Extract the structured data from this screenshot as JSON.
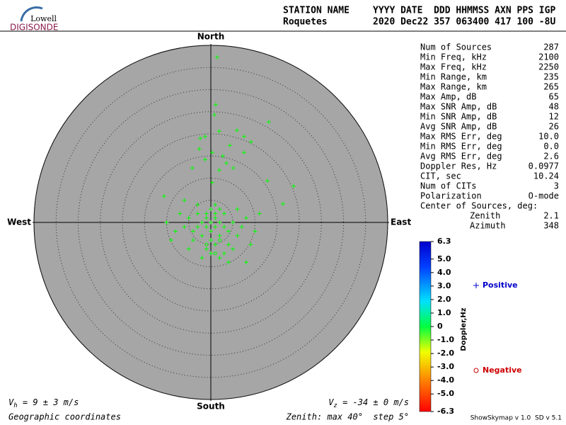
{
  "header": {
    "logo_top": "Lowell",
    "logo_bottom": "DIGISONDE",
    "row1_left": "STATION NAME",
    "row1_right": "YYYY DATE  DDD HHMMSS AXN PPS IGP",
    "row2_left": "Roquetes",
    "row2_right": "2020 Dec22 357 063400 417 100 -8U"
  },
  "stats": [
    [
      "Num of Sources",
      "287"
    ],
    [
      "Min Freq, kHz",
      "2100"
    ],
    [
      "Max Freq, kHz",
      "2250"
    ],
    [
      "Min Range, km",
      "235"
    ],
    [
      "Max Range, km",
      "265"
    ],
    [
      "Max Amp, dB",
      "65"
    ],
    [
      "Max SNR Amp, dB",
      "48"
    ],
    [
      "Min SNR Amp, dB",
      "12"
    ],
    [
      "Avg SNR Amp, dB",
      "26"
    ],
    [
      "Max RMS Err, deg",
      "10.0"
    ],
    [
      "Min RMS Err, deg",
      "0.0"
    ],
    [
      "Avg RMS Err, deg",
      "2.6"
    ],
    [
      "Doppler Res, Hz",
      "0.0977"
    ],
    [
      "CIT, sec",
      "10.24"
    ],
    [
      "Num of CITs",
      "3"
    ],
    [
      "Polarization",
      "O-mode"
    ],
    [
      "Center of Sources, deg:",
      ""
    ]
  ],
  "center": [
    [
      "Zenith",
      "2.1"
    ],
    [
      "Azimuth",
      "348"
    ]
  ],
  "footer": {
    "vh_v": "V",
    "vh_sub": "h",
    "vh_text": " = 9 ± 3 m/s",
    "vz_v": "V",
    "vz_sub": "z",
    "vz_text": " = -34 ± 0 m/s",
    "coords": "Geographic coordinates",
    "zenith": "Zenith: max 40°  step 5°",
    "version": "ShowSkymap v 1.0  SD v 5.1"
  },
  "chart_data": {
    "type": "scatter",
    "directions": {
      "north": "North",
      "south": "South",
      "west": "West",
      "east": "East"
    },
    "xlim": [
      -40,
      40
    ],
    "ylim": [
      -40,
      40
    ],
    "rticks": [
      5,
      10,
      15,
      20,
      25,
      30,
      35,
      40
    ],
    "series": [
      {
        "name": "Positive",
        "marker": "+",
        "color": "#00ff00",
        "legend_color": "#0000cc",
        "x": [
          1.4,
          1.1,
          0.8,
          13.1,
          5.9,
          1.9,
          -1.3,
          -2.4,
          7.5,
          4.3,
          9.1,
          -2.6,
          0.3,
          7.5,
          2.7,
          -1.3,
          3.5,
          5.1,
          1.9,
          -4.2,
          0.3,
          12.8,
          18.7,
          -10.6,
          16.3,
          0,
          1,
          -1,
          2,
          -2,
          0,
          3,
          -3,
          1,
          -1,
          4,
          -4,
          2,
          -2,
          0,
          5,
          -5,
          3,
          -3,
          6,
          -6,
          1,
          -1,
          4,
          -4,
          7,
          -8,
          8,
          -7,
          2,
          0,
          6,
          -9,
          9,
          3,
          -2,
          5,
          -5,
          1,
          -3,
          8,
          4,
          -10,
          10,
          11,
          -6,
          0,
          2,
          -1,
          1
        ],
        "values": [
          37.3,
          26.6,
          24.3,
          22.7,
          20.8,
          20.6,
          19.4,
          19.0,
          19.4,
          17.4,
          18.2,
          16.6,
          15.8,
          15.8,
          15.0,
          14.2,
          13.4,
          12.3,
          11.8,
          12.3,
          9.0,
          9.4,
          8.2,
          5.9,
          4.2,
          0,
          -1,
          -1,
          0,
          0,
          -2,
          -1,
          -1,
          1,
          1,
          -2,
          -2,
          -3,
          -3,
          -4,
          0,
          1,
          2,
          2,
          -3,
          -1,
          -5,
          -6,
          -5,
          -4,
          -1,
          -2,
          1,
          2,
          3,
          3,
          3,
          -4,
          -5,
          -7,
          -8,
          -6,
          -6,
          4,
          4,
          -9,
          -9,
          0,
          -2,
          2,
          5,
          -7,
          -8,
          2,
          2
        ]
      },
      {
        "name": "Negative",
        "marker": "o",
        "color": "#00ff00",
        "legend_color": "#cc0000",
        "x": [
          -1,
          2,
          1
        ],
        "values": [
          -5,
          -4,
          -7
        ]
      }
    ],
    "colorbar": {
      "label": "Doppler,Hz",
      "lim": [
        -6.3,
        6.3
      ],
      "ticks": [
        6.3,
        {
          "value": 5,
          "label": "5.0"
        },
        {
          "value": 4,
          "label": "4.0"
        },
        {
          "value": 3,
          "label": "3.0"
        },
        {
          "value": 2,
          "label": "2.0"
        },
        {
          "value": 1,
          "label": "1.0"
        },
        0,
        {
          "value": -1,
          "label": "-1.0"
        },
        {
          "value": -2,
          "label": "-2.0"
        },
        {
          "value": -3,
          "label": "-3.0"
        },
        {
          "value": -4,
          "label": "-4.0"
        },
        {
          "value": -5,
          "label": "-5.0"
        },
        -6.3
      ]
    }
  }
}
